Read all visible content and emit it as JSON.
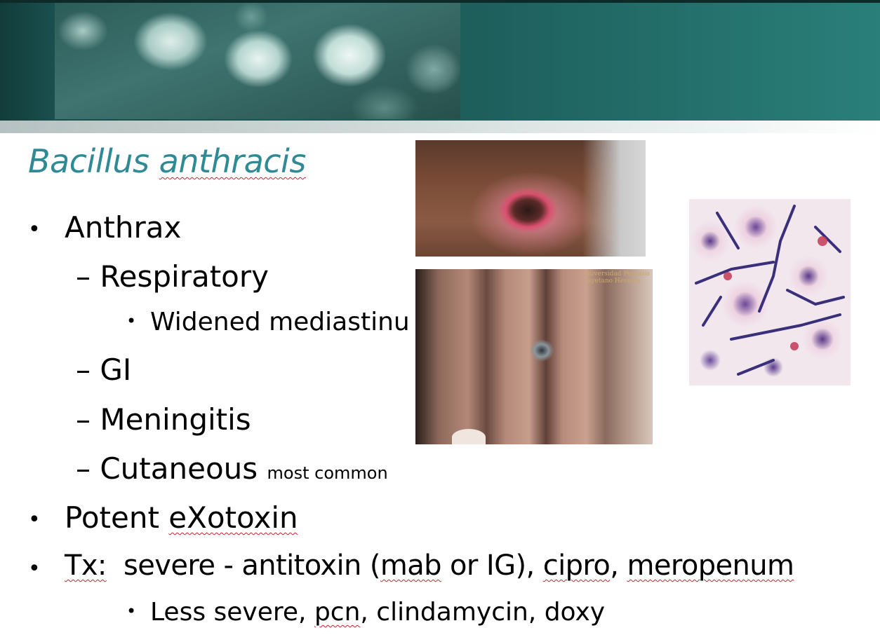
{
  "slide": {
    "title": {
      "part1": "Bacillus",
      "part2": "anthracis"
    },
    "bullets": {
      "anthrax": "Anthrax",
      "respiratory": "– Respiratory",
      "widened": "Widened mediastinu",
      "gi": "– GI",
      "meningitis": "– Meningitis",
      "cutaneous": "– Cutaneous",
      "cutaneous_note": "most common",
      "potent_prefix": "Potent ",
      "exotoxin": "eXotoxin",
      "tx_label": "Tx:",
      "tx_text_1": "  severe - antitoxin (",
      "tx_mab": "mab",
      "tx_text_2": " or IG), ",
      "tx_cipro": "cipro",
      "tx_text_3": ", ",
      "tx_meropenum": "meropenum",
      "less_prefix": "Less severe, ",
      "pcn": "pcn",
      "less_suffix": ", clindamycin, doxy"
    },
    "bullet_symbol": "•",
    "watermark_line1": "Universidad Peruana",
    "watermark_line2": "Cayetano Heredia"
  },
  "colors": {
    "title": "#2f8a96",
    "banner": "#1e5f5c",
    "spellcheck": "#d0202a"
  }
}
